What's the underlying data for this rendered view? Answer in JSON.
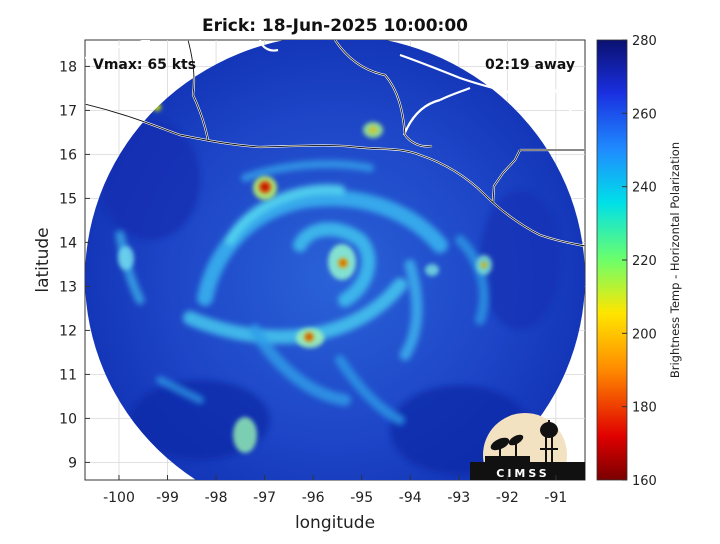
{
  "title": "Erick: 18-Jun-2025 10:00:00",
  "vmax_label": "Vmax: 65 kts",
  "time_away": "02:19 away",
  "xlabel": "longitude",
  "ylabel": "latitude",
  "x_ticks": [
    "-100",
    "-99",
    "-98",
    "-97",
    "-96",
    "-95",
    "-94",
    "-93",
    "-92",
    "-91"
  ],
  "y_ticks": [
    "9",
    "10",
    "11",
    "12",
    "13",
    "14",
    "15",
    "16",
    "17",
    "18"
  ],
  "colorbar": {
    "label": "Brightness Temp - Horizontal Polarization",
    "ticks": [
      "280",
      "260",
      "240",
      "220",
      "200",
      "180",
      "160"
    ],
    "range": [
      160,
      280
    ]
  },
  "logo_text": "CIMSS",
  "map": {
    "lon_range": [
      -100.7,
      -90.4
    ],
    "lat_range": [
      8.6,
      18.6
    ],
    "swath_center": [
      -95.6,
      13.6
    ],
    "storm_center": [
      -95.0,
      13.5
    ],
    "colors": {
      "cold": "#0a1a9a",
      "warm": "#3b7be0",
      "background_scene": "#1f3fc8"
    }
  }
}
